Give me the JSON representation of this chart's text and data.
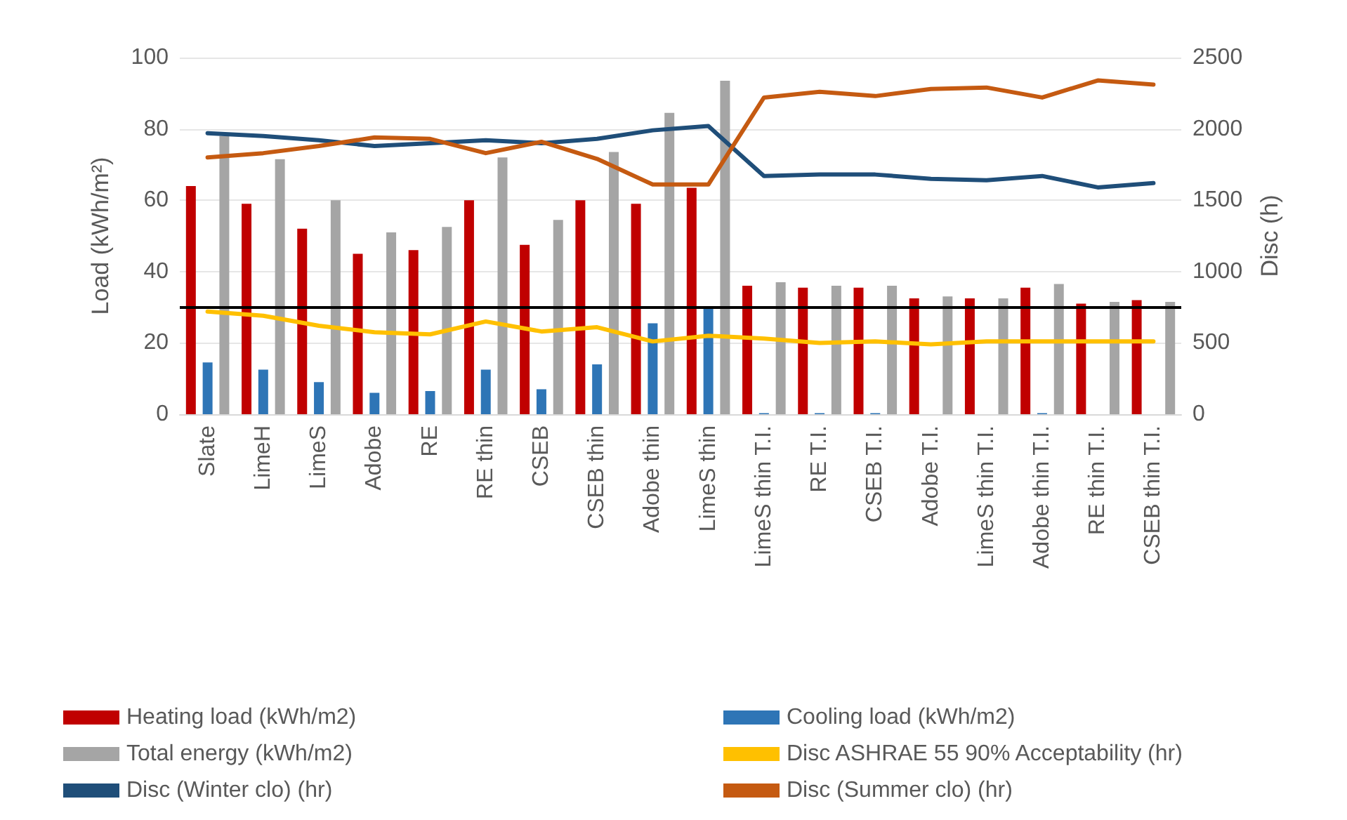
{
  "chart_data": {
    "type": "bar",
    "ylabel": "Load (kWh/m²)",
    "y2label": "Disc (h)",
    "categories": [
      "Slate",
      "LimeH",
      "LimeS",
      "Adobe",
      "RE",
      "RE thin",
      "CSEB",
      "CSEB thin",
      "Adobe thin",
      "LimeS thin",
      "LimeS thin T.I.",
      "RE T.I.",
      "CSEB T.I.",
      "Adobe T.I.",
      "LimeS thin T.I.",
      "Adobe thin T.I.",
      "RE thin T.I.",
      "CSEB thin T.I."
    ],
    "series": [
      {
        "name": "Heating load (kWh/m2)",
        "color": "#c00000",
        "values": [
          64,
          59,
          52,
          45,
          46,
          60,
          47.5,
          60,
          59,
          63.5,
          36,
          35.5,
          35.5,
          32.5,
          32.5,
          35.5,
          31,
          32
        ]
      },
      {
        "name": "Cooling load (kWh/m2)",
        "color": "#2e75b6",
        "values": [
          14.5,
          12.5,
          9,
          6,
          6.5,
          12.5,
          7,
          14,
          25.5,
          30,
          0.3,
          0.3,
          0.3,
          0,
          0,
          0.3,
          0,
          0
        ]
      },
      {
        "name": "Total energy (kWh/m2)",
        "color": "#a5a5a5",
        "values": [
          78,
          71.5,
          60,
          51,
          52.5,
          72,
          54.5,
          73.5,
          84.5,
          93.5,
          37,
          36,
          36,
          33,
          32.5,
          36.5,
          31.5,
          31.5
        ]
      },
      {
        "name": "Disc ASHRAE 55 90% Acceptability (hr)",
        "type": "line",
        "axis": "y2",
        "color": "#ffc000",
        "values": [
          720,
          690,
          620,
          575,
          560,
          650,
          580,
          610,
          510,
          550,
          530,
          500,
          510,
          490,
          510,
          510,
          510,
          510
        ]
      },
      {
        "name": "Disc (Winter clo) (hr)",
        "type": "line",
        "axis": "y2",
        "color": "#1f4e79",
        "values": [
          1970,
          1950,
          1920,
          1880,
          1900,
          1920,
          1900,
          1930,
          1990,
          2020,
          1670,
          1680,
          1680,
          1650,
          1640,
          1670,
          1590,
          1620
        ]
      },
      {
        "name": "Disc (Summer clo) (hr)",
        "type": "line",
        "axis": "y2",
        "color": "#c55a11",
        "values": [
          1800,
          1830,
          1880,
          1940,
          1930,
          1830,
          1910,
          1790,
          1610,
          1610,
          2220,
          2260,
          2230,
          2280,
          2290,
          2220,
          2340,
          2310
        ]
      }
    ],
    "ylim": [
      0,
      100
    ],
    "yticks": [
      0,
      20,
      40,
      60,
      80,
      100
    ],
    "y2lim": [
      0,
      2500
    ],
    "y2ticks": [
      0,
      500,
      1000,
      1500,
      2000,
      2500
    ],
    "ref_lines": [
      {
        "axis": "y",
        "value": 30,
        "color": "#000000"
      }
    ],
    "grid": "y",
    "legend": "bottom",
    "marker": "none",
    "line_style": "solid"
  }
}
